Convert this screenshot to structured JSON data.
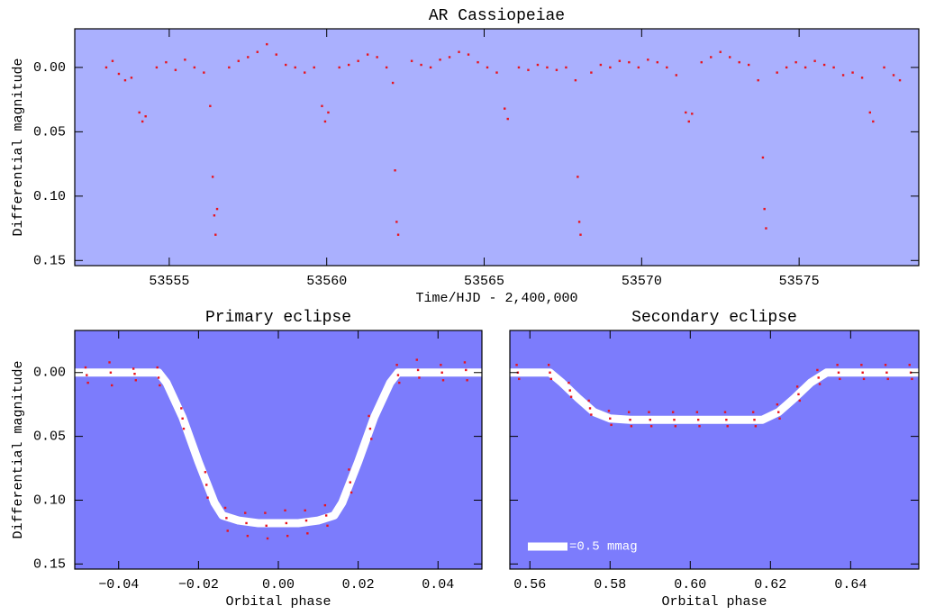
{
  "chart_data": [
    {
      "type": "scatter",
      "title": "AR Cassiopeiae",
      "x_label": "Time/HJD - 2,400,000",
      "y_label": "Differential magnitude",
      "background": "#aab0fe",
      "color": "#e8141e",
      "y_inverted": true,
      "xlim": [
        53552,
        53578.8
      ],
      "ylim": [
        -0.03,
        0.154
      ],
      "xticks": [
        53555,
        53560,
        53565,
        53570,
        53575
      ],
      "yticks": [
        {
          "value": 0,
          "label": "0.00"
        },
        {
          "value": 0.05,
          "label": "0.05"
        },
        {
          "value": 0.1,
          "label": "0.10"
        },
        {
          "value": 0.15,
          "label": "0.15"
        }
      ],
      "x": [
        53553.0,
        53553.2,
        53553.4,
        53553.6,
        53553.8,
        53554.05,
        53554.15,
        53554.25,
        53554.6,
        53554.9,
        53555.2,
        53555.5,
        53555.8,
        53556.1,
        53556.3,
        53556.38,
        53556.43,
        53556.47,
        53556.52,
        53556.9,
        53557.2,
        53557.5,
        53557.8,
        53558.1,
        53558.4,
        53558.7,
        53559.0,
        53559.3,
        53559.6,
        53559.85,
        53559.95,
        53560.05,
        53560.4,
        53560.7,
        53561.0,
        53561.3,
        53561.6,
        53561.9,
        53562.1,
        53562.17,
        53562.22,
        53562.27,
        53562.7,
        53563.0,
        53563.3,
        53563.6,
        53563.9,
        53564.2,
        53564.5,
        53564.8,
        53565.1,
        53565.4,
        53565.65,
        53565.75,
        53566.1,
        53566.4,
        53566.7,
        53567.0,
        53567.3,
        53567.6,
        53567.9,
        53567.97,
        53568.02,
        53568.06,
        53568.4,
        53568.7,
        53569.0,
        53569.3,
        53569.6,
        53569.9,
        53570.2,
        53570.5,
        53570.8,
        53571.1,
        53571.4,
        53571.5,
        53571.6,
        53571.9,
        53572.2,
        53572.5,
        53572.8,
        53573.1,
        53573.4,
        53573.7,
        53573.85,
        53573.9,
        53573.95,
        53574.3,
        53574.6,
        53574.9,
        53575.2,
        53575.5,
        53575.8,
        53576.1,
        53576.4,
        53576.7,
        53577.0,
        53577.25,
        53577.35,
        53577.7,
        53578.0,
        53578.2
      ],
      "y": [
        0.0,
        -0.005,
        0.005,
        0.01,
        0.008,
        0.035,
        0.042,
        0.038,
        0.0,
        -0.004,
        0.002,
        -0.006,
        0.0,
        0.004,
        0.03,
        0.085,
        0.115,
        0.13,
        0.11,
        0.0,
        -0.005,
        -0.008,
        -0.012,
        -0.018,
        -0.01,
        -0.002,
        0.0,
        0.004,
        0.0,
        0.03,
        0.042,
        0.035,
        0.0,
        -0.002,
        -0.005,
        -0.01,
        -0.008,
        0.0,
        0.012,
        0.08,
        0.12,
        0.13,
        -0.005,
        -0.002,
        0.0,
        -0.006,
        -0.008,
        -0.012,
        -0.01,
        -0.004,
        0.0,
        0.004,
        0.032,
        0.04,
        0.0,
        0.002,
        -0.002,
        0.0,
        0.002,
        0.0,
        0.01,
        0.085,
        0.12,
        0.13,
        0.004,
        -0.002,
        0.0,
        -0.005,
        -0.004,
        0.0,
        -0.006,
        -0.004,
        0.0,
        0.006,
        0.035,
        0.042,
        0.036,
        -0.004,
        -0.008,
        -0.012,
        -0.008,
        -0.004,
        -0.002,
        0.01,
        0.07,
        0.11,
        0.125,
        0.004,
        0.0,
        -0.004,
        0.0,
        -0.005,
        -0.002,
        0.0,
        0.006,
        0.004,
        0.008,
        0.035,
        0.042,
        0.0,
        0.006,
        0.01
      ]
    },
    {
      "type": "scatter",
      "title": "Primary eclipse",
      "x_label": "Orbital phase",
      "y_label": "Differential magnitude",
      "background": "#7c7cfc",
      "color": "#e8141e",
      "y_inverted": true,
      "xlim": [
        -0.051,
        0.051
      ],
      "ylim": [
        -0.033,
        0.154
      ],
      "xticks": [
        {
          "value": -0.04,
          "label": "−0.04"
        },
        {
          "value": -0.02,
          "label": "−0.02"
        },
        {
          "value": 0,
          "label": "0.00"
        },
        0.02,
        0.04
      ],
      "yticks": [
        {
          "value": 0,
          "label": "0.00"
        },
        {
          "value": 0.05,
          "label": "0.05"
        },
        {
          "value": 0.1,
          "label": "0.10"
        },
        {
          "value": 0.15,
          "label": "0.15"
        }
      ],
      "x": [
        -0.0483,
        -0.048,
        -0.0477,
        -0.0423,
        -0.042,
        -0.0417,
        -0.0363,
        -0.036,
        -0.0357,
        -0.0303,
        -0.03,
        -0.0297,
        -0.0243,
        -0.024,
        -0.0237,
        -0.0183,
        -0.018,
        -0.0177,
        -0.0133,
        -0.013,
        -0.0127,
        -0.0083,
        -0.008,
        -0.0077,
        -0.0033,
        -0.003,
        -0.0027,
        0.0017,
        0.002,
        0.0023,
        0.0067,
        0.007,
        0.0073,
        0.0117,
        0.012,
        0.0123,
        0.0177,
        0.018,
        0.0183,
        0.0227,
        0.023,
        0.0233,
        0.0297,
        0.03,
        0.0303,
        0.0347,
        0.035,
        0.0353,
        0.0407,
        0.041,
        0.0413,
        0.0467,
        0.047,
        0.0473
      ],
      "y": [
        -0.004,
        0.002,
        0.008,
        -0.008,
        0.0,
        0.01,
        -0.003,
        0.001,
        0.006,
        -0.004,
        0.004,
        0.01,
        0.028,
        0.036,
        0.044,
        0.078,
        0.088,
        0.098,
        0.106,
        0.114,
        0.124,
        0.11,
        0.118,
        0.128,
        0.11,
        0.12,
        0.13,
        0.108,
        0.118,
        0.128,
        0.108,
        0.116,
        0.126,
        0.104,
        0.112,
        0.12,
        0.076,
        0.086,
        0.094,
        0.034,
        0.044,
        0.052,
        -0.006,
        0.002,
        0.008,
        -0.01,
        -0.002,
        0.004,
        -0.006,
        0.0,
        0.006,
        -0.008,
        -0.002,
        0.006
      ],
      "model": {
        "color": "#ffffff",
        "x": [
          -0.051,
          -0.03,
          -0.028,
          -0.024,
          -0.02,
          -0.016,
          -0.014,
          -0.01,
          -0.005,
          0,
          0.005,
          0.01,
          0.014,
          0.016,
          0.02,
          0.024,
          0.028,
          0.03,
          0.051
        ],
        "y": [
          0,
          0,
          0.008,
          0.035,
          0.07,
          0.102,
          0.112,
          0.116,
          0.118,
          0.118,
          0.118,
          0.116,
          0.112,
          0.102,
          0.07,
          0.035,
          0.008,
          0,
          0
        ]
      }
    },
    {
      "type": "scatter",
      "title": "Secondary eclipse",
      "x_label": "Orbital phase",
      "background": "#7c7cfc",
      "color": "#e8141e",
      "y_inverted": true,
      "show_ytick_labels": false,
      "xlim": [
        0.555,
        0.657
      ],
      "ylim": [
        -0.033,
        0.154
      ],
      "xticks": [
        0.56,
        0.58,
        {
          "value": 0.6,
          "label": "0.60"
        },
        0.62,
        0.64
      ],
      "yticks": [
        0,
        0.05,
        0.1,
        0.15
      ],
      "x": [
        0.5567,
        0.557,
        0.5573,
        0.5647,
        0.565,
        0.5653,
        0.5697,
        0.57,
        0.5703,
        0.5747,
        0.575,
        0.5753,
        0.5797,
        0.58,
        0.5803,
        0.5847,
        0.585,
        0.5853,
        0.5897,
        0.59,
        0.5903,
        0.5957,
        0.596,
        0.5963,
        0.6017,
        0.602,
        0.6023,
        0.6087,
        0.609,
        0.6093,
        0.6157,
        0.616,
        0.6163,
        0.6217,
        0.622,
        0.6223,
        0.6267,
        0.627,
        0.6273,
        0.6317,
        0.632,
        0.6323,
        0.6367,
        0.637,
        0.6373,
        0.6427,
        0.643,
        0.6433,
        0.6487,
        0.649,
        0.6493,
        0.6547,
        0.655,
        0.6553
      ],
      "y": [
        -0.006,
        0.0,
        0.005,
        -0.006,
        0.0,
        0.005,
        0.008,
        0.014,
        0.019,
        0.022,
        0.028,
        0.033,
        0.03,
        0.036,
        0.041,
        0.031,
        0.037,
        0.042,
        0.031,
        0.037,
        0.042,
        0.031,
        0.037,
        0.042,
        0.031,
        0.037,
        0.042,
        0.031,
        0.037,
        0.042,
        0.031,
        0.037,
        0.042,
        0.025,
        0.031,
        0.036,
        0.011,
        0.017,
        0.022,
        -0.002,
        0.004,
        0.009,
        -0.006,
        0.0,
        0.005,
        -0.006,
        0.0,
        0.005,
        -0.006,
        0.0,
        0.005,
        -0.006,
        0.0,
        0.005
      ],
      "model": {
        "color": "#ffffff",
        "x": [
          0.555,
          0.565,
          0.568,
          0.572,
          0.576,
          0.58,
          0.585,
          0.618,
          0.622,
          0.626,
          0.63,
          0.634,
          0.657
        ],
        "y": [
          0,
          0,
          0.008,
          0.02,
          0.031,
          0.036,
          0.037,
          0.037,
          0.031,
          0.02,
          0.008,
          0,
          0
        ]
      },
      "legend_label": "=0.5 mmag"
    }
  ]
}
